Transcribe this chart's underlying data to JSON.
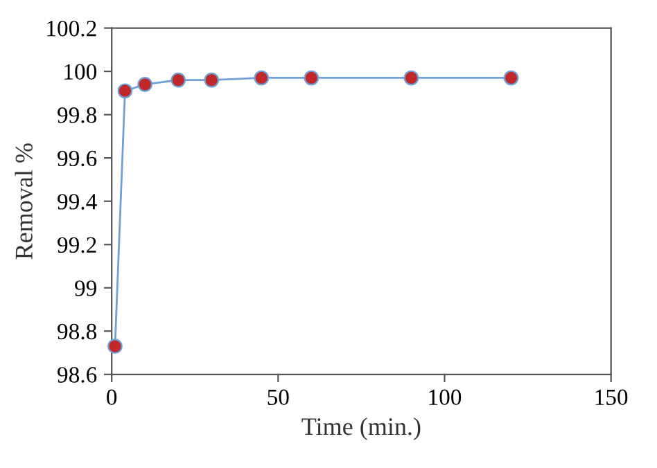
{
  "chart_data": {
    "type": "line",
    "xlabel": "Time (min.)",
    "ylabel": "Removal %",
    "x": [
      1,
      4,
      10,
      20,
      30,
      45,
      60,
      90,
      120
    ],
    "series": [
      {
        "color": "#6f9fd8",
        "colors": [
          "#c0282a",
          "#c0282a",
          "#c0282a",
          "#c0282a",
          "#c0282a",
          "#c0282a",
          "#c0282a",
          "#c0282a",
          "#c0282a"
        ],
        "values": [
          98.73,
          99.91,
          99.94,
          99.96,
          99.96,
          99.97,
          99.97,
          99.97,
          99.97
        ]
      }
    ],
    "xlim": [
      0,
      150
    ],
    "xticks": [
      0,
      50,
      100,
      150
    ],
    "ylim": [
      98.6,
      100.2
    ],
    "yticks": [
      {
        "value": 98.6,
        "label": "98.6"
      },
      {
        "value": 98.8,
        "label": "98.8"
      },
      {
        "value": 99,
        "label": "99"
      },
      {
        "value": 99.2,
        "label": "99.2"
      },
      {
        "value": 99.4,
        "label": "99.4"
      },
      {
        "value": 99.6,
        "label": "99.6"
      },
      {
        "value": 99.8,
        "label": "99.8"
      },
      {
        "value": 100,
        "label": "100"
      },
      {
        "value": 100.2,
        "label": "100.2"
      }
    ],
    "marker": "circle",
    "line_style": "solid",
    "grid": false,
    "legend": false
  }
}
